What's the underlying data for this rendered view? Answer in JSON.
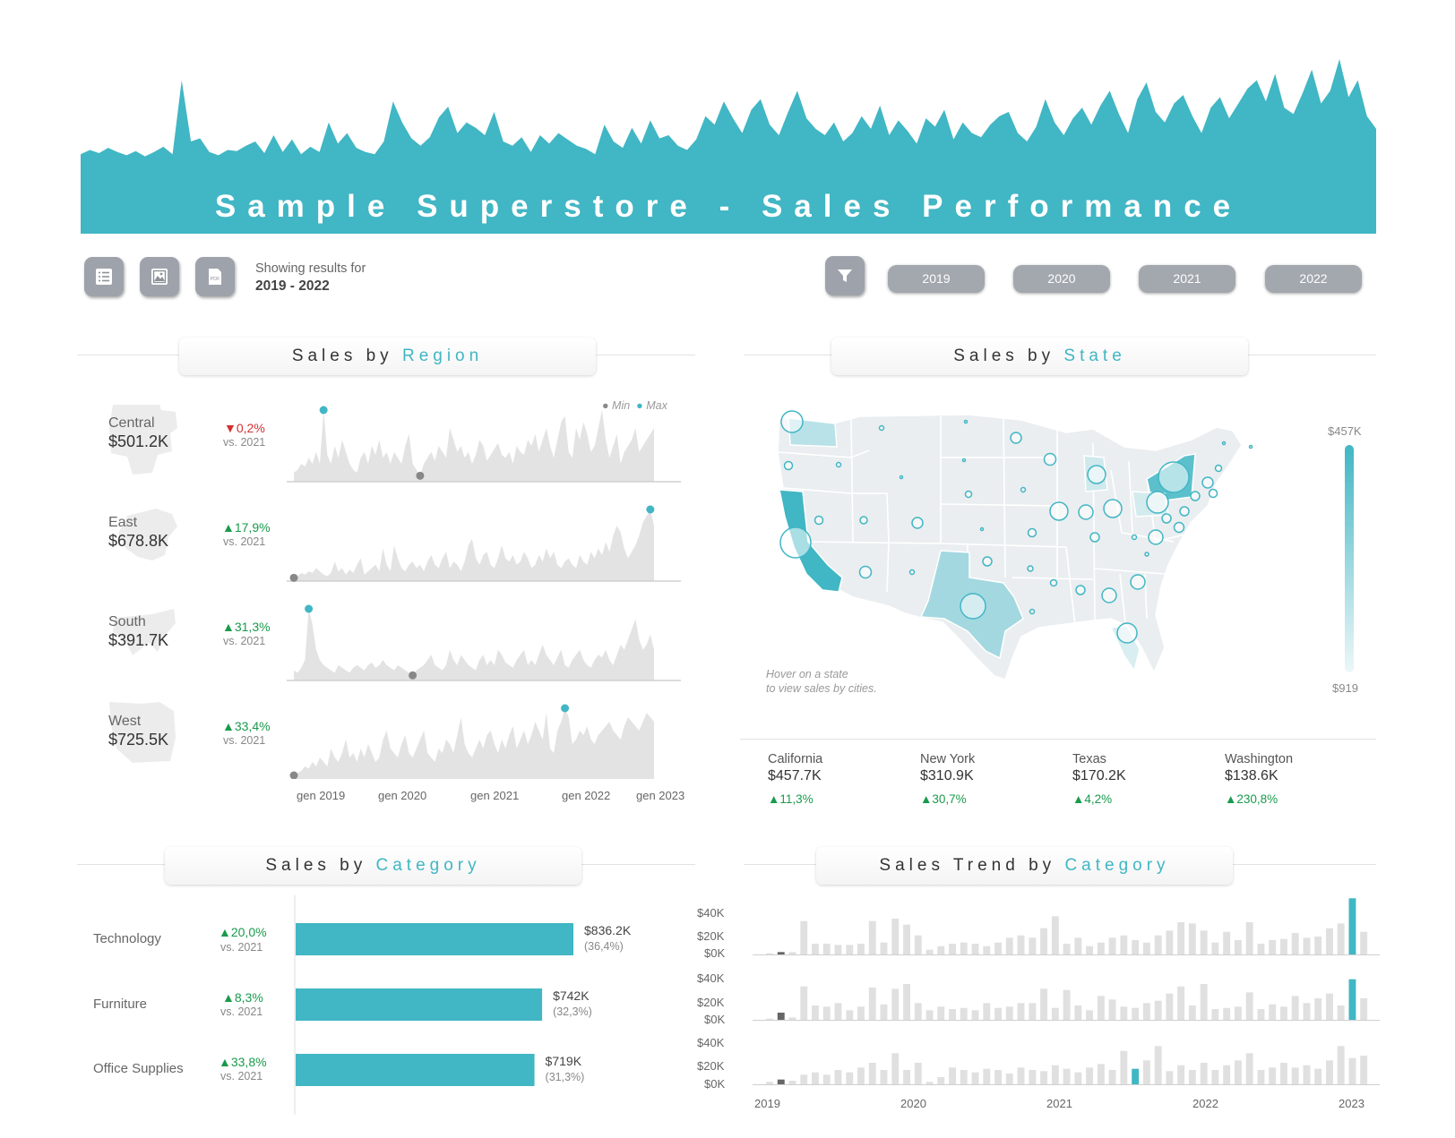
{
  "colors": {
    "accent": "#41b6c4",
    "grey": "#d9d9d9",
    "up": "#1a9a4c",
    "down": "#d62f2f",
    "min_dot": "#888888"
  },
  "header": {
    "title": "Sample Superstore - Sales Performance",
    "banner_series": [
      10,
      14,
      11,
      16,
      12,
      9,
      13,
      8,
      12,
      17,
      10,
      80,
      22,
      25,
      12,
      9,
      14,
      13,
      18,
      22,
      11,
      28,
      12,
      24,
      10,
      17,
      12,
      40,
      20,
      30,
      16,
      12,
      10,
      22,
      60,
      40,
      25,
      18,
      26,
      45,
      55,
      30,
      40,
      35,
      28,
      50,
      22,
      18,
      26,
      12,
      28,
      20,
      30,
      24,
      18,
      15,
      10,
      38,
      22,
      16,
      35,
      20,
      42,
      25,
      28,
      18,
      14,
      24,
      46,
      38,
      60,
      44,
      30,
      52,
      62,
      38,
      28,
      50,
      70,
      44,
      34,
      28,
      40,
      22,
      30,
      46,
      34,
      56,
      28,
      42,
      32,
      20,
      44,
      36,
      52,
      24,
      40,
      30,
      26,
      38,
      46,
      50,
      30,
      22,
      36,
      62,
      40,
      28,
      44,
      54,
      38,
      56,
      70,
      48,
      30,
      62,
      78,
      50,
      40,
      58,
      66,
      46,
      30,
      54,
      64,
      44,
      58,
      72,
      80,
      60,
      86,
      54,
      48,
      68,
      90,
      58,
      70,
      100,
      64,
      80,
      46,
      34
    ]
  },
  "toolbar": {
    "icons": [
      "list-icon",
      "image-icon",
      "pdf-icon",
      "filter-icon"
    ],
    "pdf_text": "PDF",
    "showing_label": "Showing results for",
    "showing_range": "2019 - 2022",
    "years": [
      "2019",
      "2020",
      "2021",
      "2022"
    ]
  },
  "sections": {
    "region": {
      "prefix": "Sales by",
      "accent": "Region"
    },
    "state": {
      "prefix": "Sales by",
      "accent": "State"
    },
    "category": {
      "prefix": "Sales by",
      "accent": "Category"
    },
    "trend": {
      "prefix": "Sales Trend by",
      "accent": "Category"
    }
  },
  "region": {
    "legend_min": "Min",
    "legend_max": "Max",
    "vs_label": "vs. 2021",
    "x_labels": [
      "gen 2019",
      "gen 2020",
      "gen 2021",
      "gen 2022",
      "gen 2023"
    ],
    "items": [
      {
        "name": "Central",
        "value": "$501.2K",
        "arrow": "▼",
        "pct": "0,2%",
        "dir": "down",
        "series": [
          3,
          4,
          6,
          5,
          8,
          6,
          10,
          6,
          24,
          9,
          6,
          12,
          8,
          14,
          10,
          6,
          4,
          3,
          8,
          10,
          6,
          12,
          9,
          14,
          8,
          10,
          6,
          10,
          8,
          6,
          12,
          16,
          6,
          4,
          2,
          6,
          8,
          10,
          7,
          12,
          10,
          8,
          18,
          14,
          10,
          12,
          8,
          10,
          6,
          9,
          14,
          12,
          7,
          9,
          11,
          13,
          9,
          8,
          10,
          6,
          12,
          10,
          9,
          14,
          12,
          16,
          10,
          14,
          18,
          12,
          8,
          14,
          20,
          22,
          10,
          8,
          18,
          14,
          20,
          16,
          10,
          12,
          18,
          24,
          14,
          8,
          12,
          16,
          6,
          10,
          12,
          14,
          18,
          10,
          12,
          14,
          16,
          18
        ]
      },
      {
        "name": "East",
        "value": "$678.8K",
        "arrow": "▲",
        "pct": "17,9%",
        "dir": "up",
        "series": [
          2,
          3,
          5,
          4,
          6,
          5,
          8,
          6,
          4,
          3,
          5,
          12,
          6,
          8,
          4,
          7,
          5,
          10,
          14,
          4,
          6,
          8,
          10,
          6,
          20,
          10,
          6,
          22,
          14,
          8,
          6,
          10,
          12,
          8,
          10,
          6,
          12,
          16,
          10,
          8,
          14,
          18,
          8,
          12,
          10,
          6,
          12,
          22,
          26,
          14,
          10,
          16,
          18,
          10,
          8,
          14,
          22,
          14,
          12,
          16,
          10,
          12,
          18,
          14,
          8,
          10,
          16,
          12,
          20,
          14,
          18,
          10,
          8,
          12,
          14,
          10,
          8,
          16,
          12,
          10,
          18,
          14,
          20,
          16,
          24,
          18,
          28,
          34,
          30,
          20,
          14,
          18,
          22,
          28,
          36,
          40,
          44,
          34
        ]
      },
      {
        "name": "South",
        "value": "$391.7K",
        "arrow": "▲",
        "pct": "31,3%",
        "dir": "up",
        "series": [
          4,
          3,
          5,
          8,
          28,
          22,
          12,
          8,
          6,
          5,
          4,
          3,
          6,
          5,
          4,
          3,
          5,
          6,
          5,
          4,
          6,
          7,
          5,
          6,
          8,
          6,
          5,
          4,
          6,
          5,
          4,
          3,
          2,
          4,
          5,
          6,
          8,
          10,
          6,
          5,
          4,
          6,
          12,
          8,
          6,
          10,
          8,
          6,
          5,
          4,
          8,
          10,
          6,
          8,
          6,
          12,
          10,
          7,
          6,
          5,
          8,
          10,
          12,
          6,
          8,
          6,
          10,
          14,
          10,
          8,
          6,
          9,
          12,
          6,
          5,
          8,
          10,
          12,
          8,
          6,
          5,
          8,
          10,
          9,
          12,
          8,
          6,
          10,
          14,
          12,
          16,
          20,
          24,
          16,
          12,
          14,
          18,
          12
        ]
      },
      {
        "name": "West",
        "value": "$725.5K",
        "arrow": "▲",
        "pct": "33,4%",
        "dir": "up",
        "series": [
          2,
          3,
          4,
          6,
          5,
          8,
          6,
          10,
          8,
          6,
          14,
          10,
          8,
          12,
          18,
          10,
          12,
          8,
          14,
          10,
          16,
          12,
          8,
          10,
          18,
          22,
          14,
          12,
          10,
          16,
          20,
          12,
          10,
          14,
          18,
          22,
          12,
          10,
          8,
          14,
          12,
          18,
          16,
          12,
          20,
          28,
          16,
          12,
          10,
          14,
          18,
          14,
          20,
          22,
          16,
          12,
          18,
          14,
          20,
          24,
          14,
          18,
          22,
          16,
          20,
          26,
          22,
          18,
          30,
          14,
          12,
          22,
          26,
          32,
          28,
          16,
          18,
          22,
          20,
          24,
          18,
          16,
          20,
          22,
          24,
          26,
          22,
          20,
          18,
          24,
          28,
          26,
          24,
          22,
          26,
          30,
          28,
          26
        ]
      }
    ]
  },
  "state": {
    "scale_max": "$457K",
    "scale_min": "$919",
    "hover_line1": "Hover on a state",
    "hover_line2": "to view sales by cities.",
    "top_states": [
      {
        "name": "California",
        "value": "$457.7K",
        "arrow": "▲",
        "pct": "11,3%"
      },
      {
        "name": "New York",
        "value": "$310.9K",
        "arrow": "▲",
        "pct": "30,7%"
      },
      {
        "name": "Texas",
        "value": "$170.2K",
        "arrow": "▲",
        "pct": "4,2%"
      },
      {
        "name": "Washington",
        "value": "$138.6K",
        "arrow": "▲",
        "pct": "230,8%"
      }
    ]
  },
  "category": {
    "vs_label": "vs. 2021",
    "items": [
      {
        "name": "Technology",
        "arrow": "▲",
        "pct": "20,0%",
        "value": "$836.2K",
        "share": "(36,4%)",
        "amount": 836.2
      },
      {
        "name": "Furniture",
        "arrow": "▲",
        "pct": "8,3%",
        "value": "$742K",
        "share": "(32,3%)",
        "amount": 742
      },
      {
        "name": "Office Supplies",
        "arrow": "▲",
        "pct": "33,8%",
        "value": "$719K",
        "share": "(31,3%)",
        "amount": 719
      }
    ]
  },
  "trend": {
    "y_labels": [
      "$40K",
      "$20K",
      "$0K"
    ],
    "x_labels": [
      "2019",
      "2020",
      "2021",
      "2022",
      "2023"
    ],
    "series": [
      {
        "values": [
          1,
          2,
          2,
          28,
          9,
          9,
          8,
          8,
          9,
          28,
          10,
          30,
          25,
          16,
          4,
          7,
          9,
          10,
          9,
          7,
          10,
          14,
          16,
          14,
          22,
          32,
          9,
          14,
          7,
          10,
          14,
          16,
          12,
          10,
          16,
          20,
          27,
          26,
          20,
          10,
          19,
          12,
          27,
          9,
          12,
          13,
          18,
          14,
          15,
          22,
          26,
          47,
          19
        ],
        "highlight": 51
      },
      {
        "values": [
          1,
          6,
          2,
          28,
          12,
          11,
          14,
          8,
          11,
          27,
          13,
          26,
          30,
          14,
          8,
          11,
          9,
          10,
          8,
          14,
          10,
          11,
          14,
          14,
          26,
          10,
          25,
          12,
          8,
          20,
          17,
          11,
          10,
          14,
          16,
          22,
          28,
          12,
          30,
          9,
          10,
          11,
          23,
          9,
          13,
          11,
          20,
          14,
          18,
          22,
          12,
          34,
          18
        ],
        "highlight": 51
      },
      {
        "values": [
          2,
          4,
          3,
          8,
          10,
          8,
          12,
          10,
          14,
          18,
          12,
          26,
          12,
          18,
          2,
          6,
          14,
          12,
          10,
          13,
          12,
          9,
          14,
          12,
          11,
          16,
          13,
          10,
          14,
          17,
          12,
          28,
          13,
          20,
          32,
          11,
          16,
          12,
          18,
          12,
          16,
          20,
          26,
          12,
          14,
          18,
          14,
          16,
          13,
          20,
          32,
          22,
          24
        ],
        "highlight": 32
      }
    ]
  }
}
